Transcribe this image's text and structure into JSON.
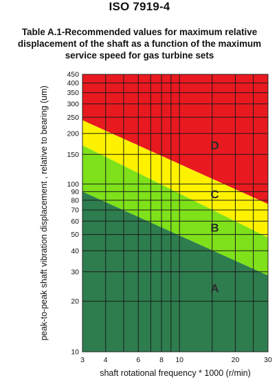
{
  "header": {
    "standard": "ISO 7919-4",
    "caption": "Table A.1-Recommended values for maximum relative displacement of the shaft as a function of the maximum service speed for gas turbine sets"
  },
  "chart_data": {
    "type": "area",
    "xlabel": "shaft rotational frequency * 1000 (r/min)",
    "ylabel": "peak-to-peak shaft vibration displacement , relative to bearing (um)",
    "x_scale": "log",
    "y_scale": "log",
    "xlim": [
      3,
      30
    ],
    "ylim": [
      10,
      450
    ],
    "x_ticks": [
      3,
      4,
      6,
      8,
      10,
      20,
      30
    ],
    "y_ticks": [
      10,
      20,
      30,
      40,
      50,
      60,
      70,
      80,
      90,
      100,
      150,
      200,
      250,
      300,
      350,
      400,
      450
    ],
    "x_gridlines": [
      3,
      4,
      5,
      6,
      7,
      8,
      9,
      10,
      15,
      20,
      25,
      30
    ],
    "grid": true,
    "zones": [
      {
        "name": "A",
        "color": "#2e7d4f"
      },
      {
        "name": "B",
        "color": "#7ee11a"
      },
      {
        "name": "C",
        "color": "#fff200"
      },
      {
        "name": "D",
        "color": "#e8191f"
      }
    ],
    "boundaries": [
      {
        "between": "A/B",
        "x": [
          3,
          30
        ],
        "y": [
          90,
          28.5
        ]
      },
      {
        "between": "B/C",
        "x": [
          3,
          30
        ],
        "y": [
          170,
          48
        ]
      },
      {
        "between": "C/D",
        "x": [
          3,
          30
        ],
        "y": [
          240,
          76
        ]
      }
    ],
    "zone_labels": [
      {
        "name": "A",
        "x": 20,
        "y": 24
      },
      {
        "name": "B",
        "x": 20,
        "y": 55
      },
      {
        "name": "C",
        "x": 20,
        "y": 87
      },
      {
        "name": "D",
        "x": 20,
        "y": 170
      }
    ]
  }
}
